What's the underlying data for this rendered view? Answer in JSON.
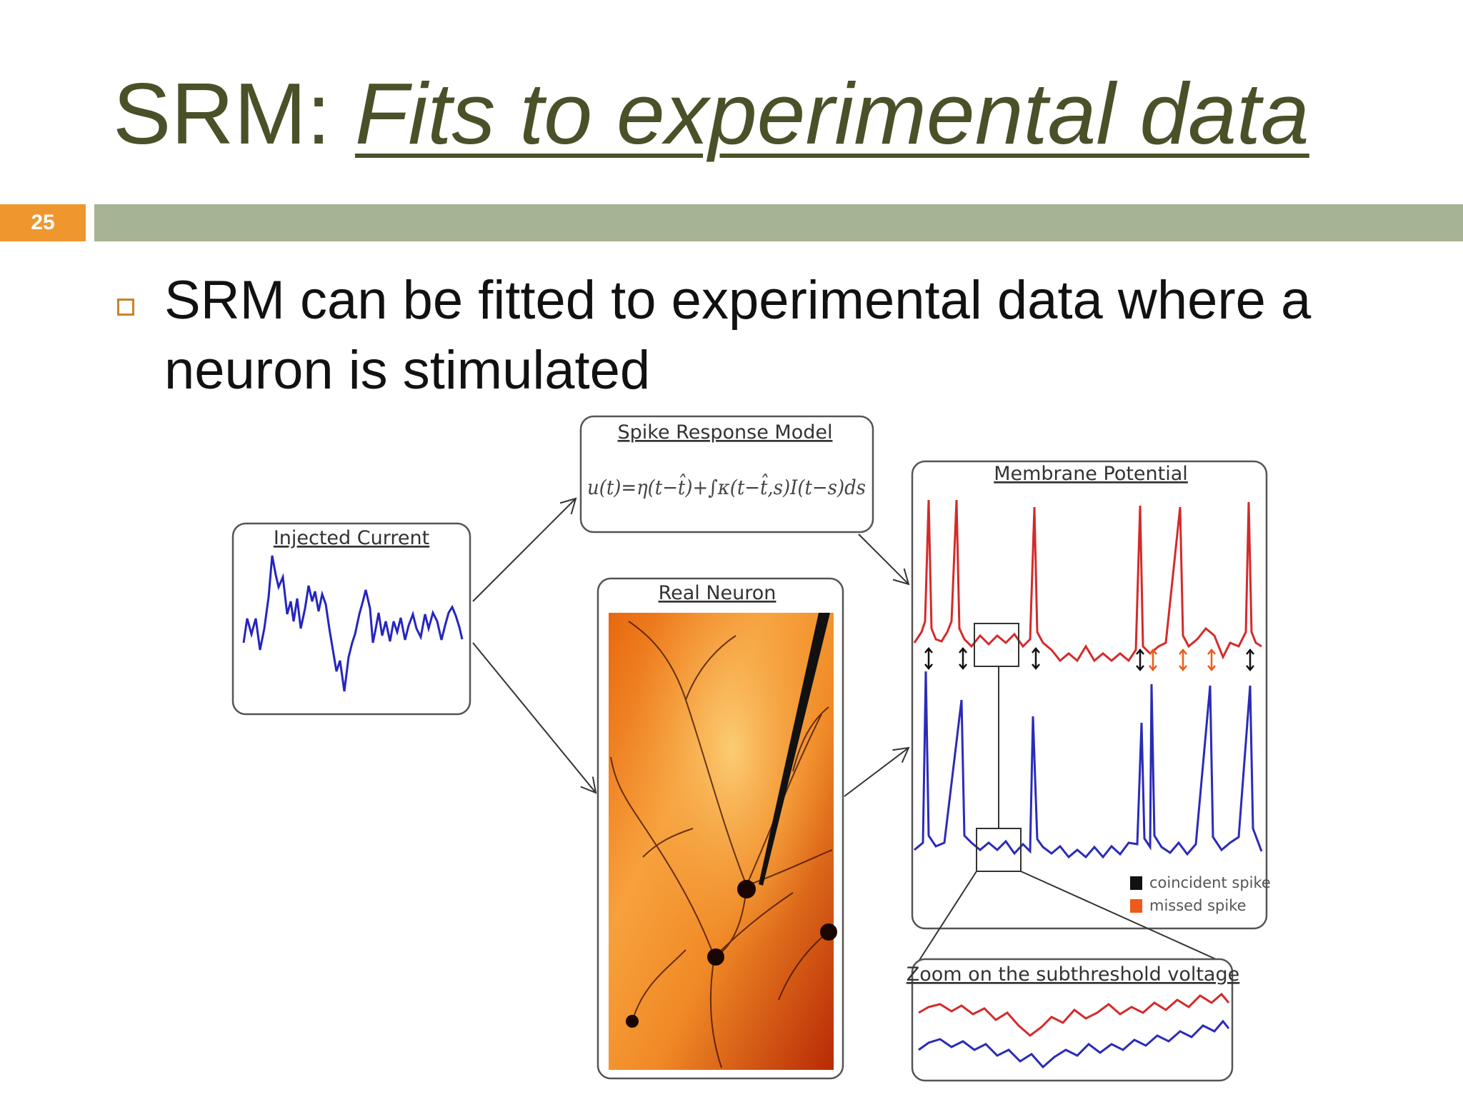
{
  "slide": {
    "title_prefix": "SRM: ",
    "title_emphasis": "Fits to experimental data",
    "number": "25",
    "bullet": "SRM can be fitted to experimental data where a neuron is stimulated"
  },
  "figure": {
    "spike_response_model_label": "Spike Response Model",
    "equation": "u(t)=η(t−t̂)+∫κ(t−t̂,s)I(t−s)ds",
    "injected_current_label": "Injected Current",
    "real_neuron_label": "Real Neuron",
    "membrane_potential_label": "Membrane Potential",
    "zoom_label": "Zoom on the subthreshold voltage",
    "legend": {
      "coincident": "coincident spike",
      "missed": "missed spike"
    },
    "colors": {
      "model_trace": "#d42a2a",
      "neuron_trace": "#2b2bb8",
      "coincident_marker": "#111111",
      "missed_marker": "#ee5a1a",
      "title_olive": "#4a5129",
      "accent_orange": "#f0962e",
      "rule_green": "#a7b494"
    }
  }
}
